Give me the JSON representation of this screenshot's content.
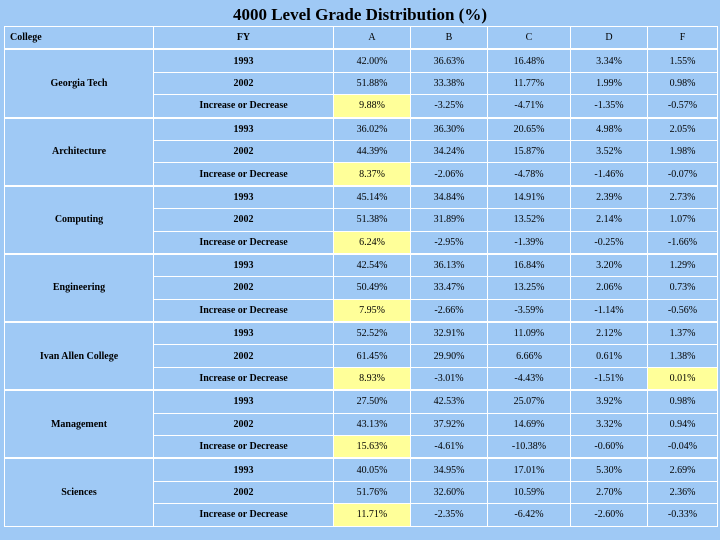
{
  "title": "4000 Level Grade Distribution (%)",
  "headers": {
    "college": "College",
    "fy": "FY",
    "grades": [
      "A",
      "B",
      "C",
      "D",
      "F"
    ]
  },
  "colleges": [
    {
      "name": "Georgia Tech",
      "rows": [
        {
          "label": "1993",
          "values": [
            "42.00%",
            "36.63%",
            "16.48%",
            "3.34%",
            "1.55%"
          ],
          "highlight": []
        },
        {
          "label": "2002",
          "values": [
            "51.88%",
            "33.38%",
            "11.77%",
            "1.99%",
            "0.98%"
          ],
          "highlight": []
        },
        {
          "label": "Increase or Decrease",
          "values": [
            "9.88%",
            "-3.25%",
            "-4.71%",
            "-1.35%",
            "-0.57%"
          ],
          "highlight": [
            0
          ]
        }
      ]
    },
    {
      "name": "Architecture",
      "rows": [
        {
          "label": "1993",
          "values": [
            "36.02%",
            "36.30%",
            "20.65%",
            "4.98%",
            "2.05%"
          ],
          "highlight": []
        },
        {
          "label": "2002",
          "values": [
            "44.39%",
            "34.24%",
            "15.87%",
            "3.52%",
            "1.98%"
          ],
          "highlight": []
        },
        {
          "label": "Increase or Decrease",
          "values": [
            "8.37%",
            "-2.06%",
            "-4.78%",
            "-1.46%",
            "-0.07%"
          ],
          "highlight": [
            0
          ]
        }
      ]
    },
    {
      "name": "Computing",
      "rows": [
        {
          "label": "1993",
          "values": [
            "45.14%",
            "34.84%",
            "14.91%",
            "2.39%",
            "2.73%"
          ],
          "highlight": []
        },
        {
          "label": "2002",
          "values": [
            "51.38%",
            "31.89%",
            "13.52%",
            "2.14%",
            "1.07%"
          ],
          "highlight": []
        },
        {
          "label": "Increase or Decrease",
          "values": [
            "6.24%",
            "-2.95%",
            "-1.39%",
            "-0.25%",
            "-1.66%"
          ],
          "highlight": [
            0
          ]
        }
      ]
    },
    {
      "name": "Engineering",
      "rows": [
        {
          "label": "1993",
          "values": [
            "42.54%",
            "36.13%",
            "16.84%",
            "3.20%",
            "1.29%"
          ],
          "highlight": []
        },
        {
          "label": "2002",
          "values": [
            "50.49%",
            "33.47%",
            "13.25%",
            "2.06%",
            "0.73%"
          ],
          "highlight": []
        },
        {
          "label": "Increase or Decrease",
          "values": [
            "7.95%",
            "-2.66%",
            "-3.59%",
            "-1.14%",
            "-0.56%"
          ],
          "highlight": [
            0
          ]
        }
      ]
    },
    {
      "name": "Ivan Allen College",
      "rows": [
        {
          "label": "1993",
          "values": [
            "52.52%",
            "32.91%",
            "11.09%",
            "2.12%",
            "1.37%"
          ],
          "highlight": []
        },
        {
          "label": "2002",
          "values": [
            "61.45%",
            "29.90%",
            "6.66%",
            "0.61%",
            "1.38%"
          ],
          "highlight": []
        },
        {
          "label": "Increase or Decrease",
          "values": [
            "8.93%",
            "-3.01%",
            "-4.43%",
            "-1.51%",
            "0.01%"
          ],
          "highlight": [
            0,
            4
          ]
        }
      ]
    },
    {
      "name": "Management",
      "rows": [
        {
          "label": "1993",
          "values": [
            "27.50%",
            "42.53%",
            "25.07%",
            "3.92%",
            "0.98%"
          ],
          "highlight": []
        },
        {
          "label": "2002",
          "values": [
            "43.13%",
            "37.92%",
            "14.69%",
            "3.32%",
            "0.94%"
          ],
          "highlight": []
        },
        {
          "label": "Increase or Decrease",
          "values": [
            "15.63%",
            "-4.61%",
            "-10.38%",
            "-0.60%",
            "-0.04%"
          ],
          "highlight": [
            0
          ]
        }
      ]
    },
    {
      "name": "Sciences",
      "rows": [
        {
          "label": "1993",
          "values": [
            "40.05%",
            "34.95%",
            "17.01%",
            "5.30%",
            "2.69%"
          ],
          "highlight": []
        },
        {
          "label": "2002",
          "values": [
            "51.76%",
            "32.60%",
            "10.59%",
            "2.70%",
            "2.36%"
          ],
          "highlight": []
        },
        {
          "label": "Increase or Decrease",
          "values": [
            "11.71%",
            "-2.35%",
            "-6.42%",
            "-2.60%",
            "-0.33%"
          ],
          "highlight": [
            0
          ]
        }
      ]
    }
  ],
  "colors": {
    "background": "#9fc9f5",
    "highlight": "#ffff99",
    "gridline": "#ffffff"
  }
}
